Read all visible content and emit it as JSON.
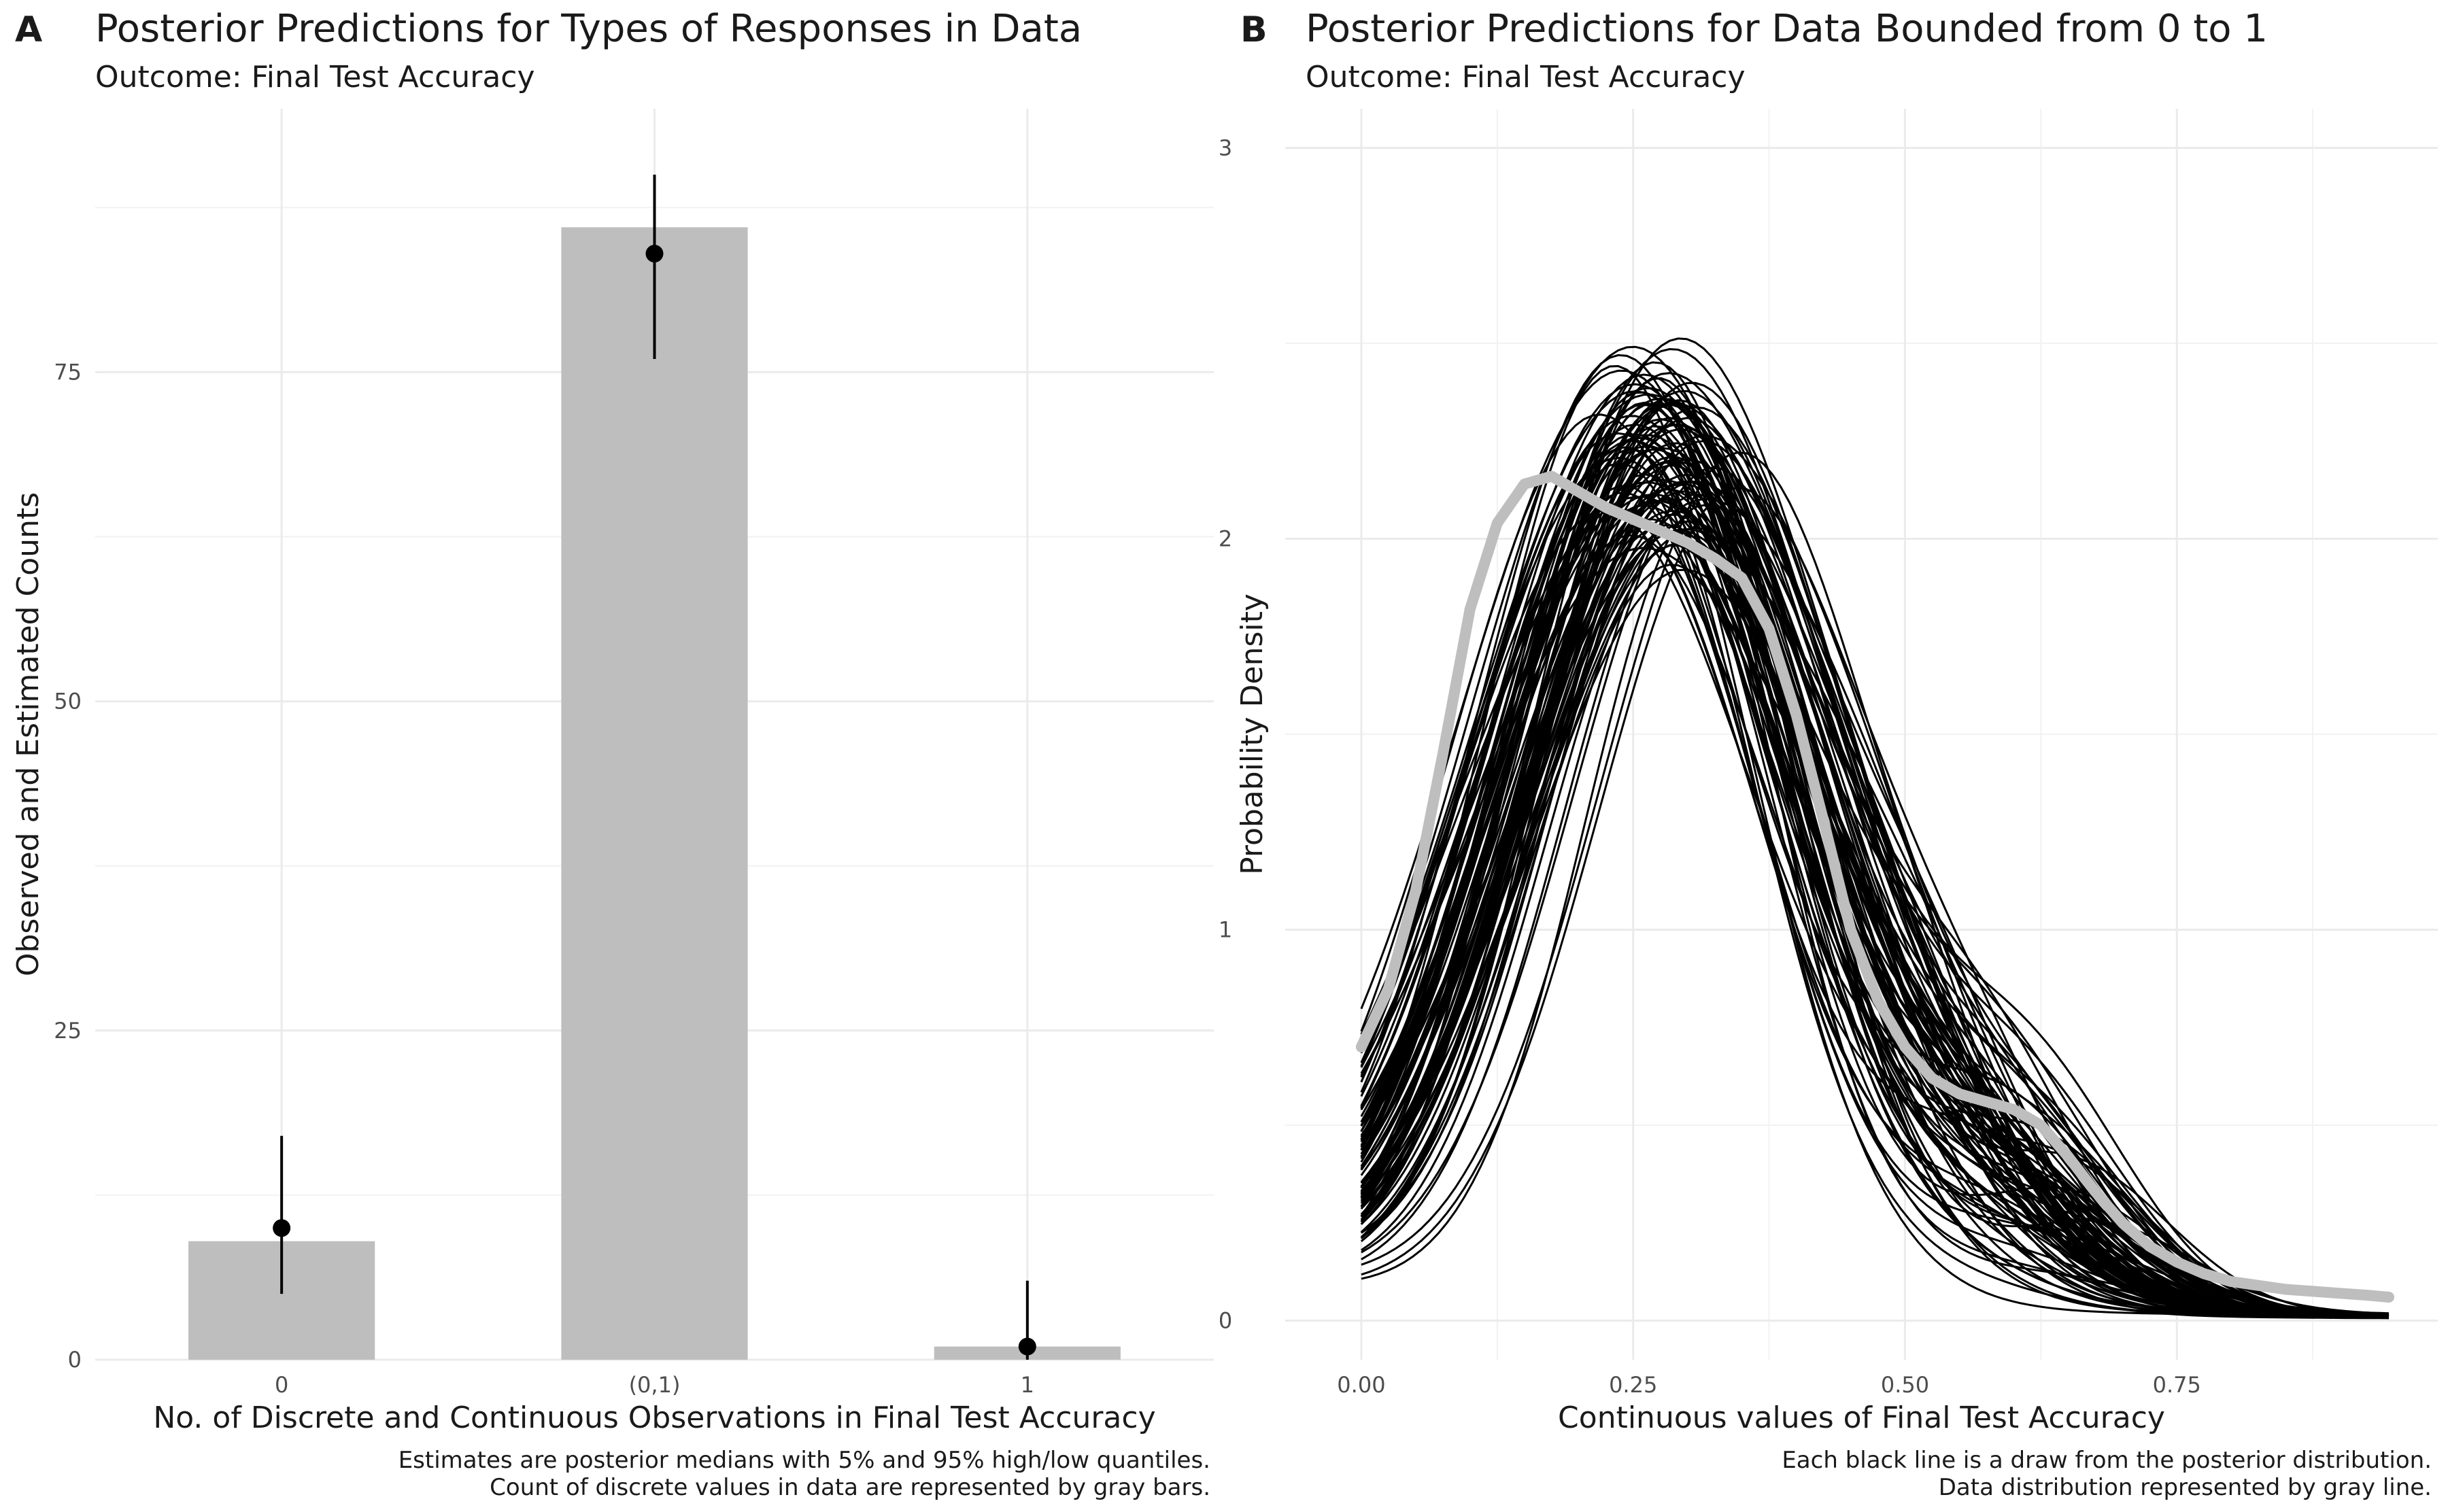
{
  "chart_data": [
    {
      "type": "bar",
      "panel_tag": "A",
      "title": "Posterior Predictions for Types of Responses in Data",
      "subtitle": "Outcome: Final Test Accuracy",
      "xlabel": "No. of Discrete and Continuous Observations in Final Test Accuracy",
      "ylabel": "Observed and Estimated Counts",
      "categories": [
        "0",
        "(0,1)",
        "1"
      ],
      "ylim": [
        0,
        95
      ],
      "yticks": [
        "0",
        "25",
        "50",
        "75"
      ],
      "series": [
        {
          "name": "",
          "values": [
            9,
            86,
            1
          ]
        }
      ],
      "estimates": {
        "median": [
          10,
          84,
          1
        ],
        "low": [
          5,
          76,
          0
        ],
        "high": [
          17,
          90,
          6
        ]
      },
      "bar_color": "#bebebe",
      "point_color": "#000000",
      "grid": true,
      "caption": [
        "Estimates are posterior medians with 5% and 95% high/low quantiles.",
        "Count of discrete values in data are represented by gray bars."
      ]
    },
    {
      "type": "line",
      "panel_tag": "B",
      "title": "Posterior Predictions for Data Bounded from 0 to 1",
      "subtitle": "Outcome: Final Test Accuracy",
      "xlabel": "Continuous values of Final Test Accuracy",
      "ylabel": "Probability Density",
      "xlim": [
        -0.07,
        0.99
      ],
      "ylim": [
        -0.1,
        3.1
      ],
      "xticks": [
        "0.00",
        "0.25",
        "0.50",
        "0.75"
      ],
      "yticks": [
        "0",
        "1",
        "2",
        "3"
      ],
      "grid": true,
      "posterior_draws": {
        "count": 100,
        "line_color": "#000000"
      },
      "observed": {
        "line_color": "#bebebe",
        "x": [
          0,
          0.025,
          0.05,
          0.075,
          0.1,
          0.125,
          0.15,
          0.175,
          0.2,
          0.225,
          0.25,
          0.275,
          0.3,
          0.325,
          0.35,
          0.375,
          0.4,
          0.425,
          0.45,
          0.475,
          0.5,
          0.525,
          0.55,
          0.575,
          0.6,
          0.625,
          0.65,
          0.675,
          0.7,
          0.725,
          0.75,
          0.775,
          0.8,
          0.825,
          0.85,
          0.875,
          0.9,
          0.925,
          0.945
        ],
        "y": [
          0.7,
          0.85,
          1.1,
          1.45,
          1.82,
          2.04,
          2.14,
          2.16,
          2.12,
          2.08,
          2.05,
          2.02,
          1.99,
          1.95,
          1.9,
          1.77,
          1.55,
          1.28,
          1.0,
          0.82,
          0.7,
          0.62,
          0.58,
          0.56,
          0.54,
          0.5,
          0.42,
          0.33,
          0.25,
          0.19,
          0.15,
          0.12,
          0.1,
          0.09,
          0.08,
          0.075,
          0.07,
          0.065,
          0.06
        ]
      },
      "caption": [
        "Each black line is a draw from the posterior distribution.",
        "Data distribution represented by gray line."
      ]
    }
  ]
}
